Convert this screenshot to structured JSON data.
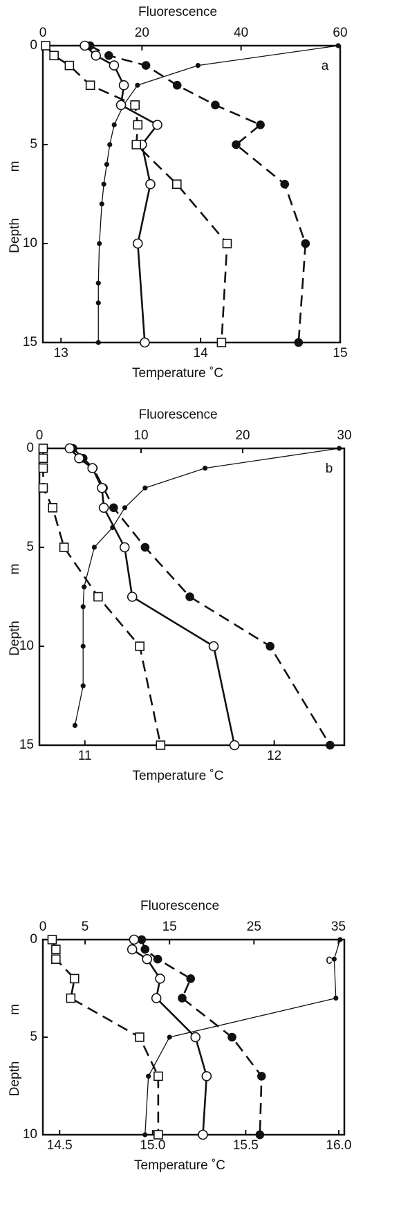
{
  "chart_data": [
    {
      "type": "line",
      "panel": "a",
      "x_label": "Temperature ˚C",
      "x2_label": "Fluorescence",
      "y_label": "Depth",
      "y_unit": "m",
      "xlim": [
        12.87,
        15.0
      ],
      "xticks": [
        13,
        14,
        15
      ],
      "x2lim": [
        0,
        60
      ],
      "x2ticks": [
        0,
        20,
        40,
        60
      ],
      "ylim": [
        0,
        15
      ],
      "yticks": [
        0,
        5,
        10,
        15
      ],
      "y_inverted": true,
      "series": [
        {
          "axis": "x2",
          "marker": "dot",
          "dash": false,
          "color": "#111",
          "y": [
            0,
            1,
            2,
            3,
            4,
            5,
            6,
            7,
            8,
            10,
            12,
            13,
            15
          ],
          "x": [
            59.6,
            31.3,
            19.1,
            16.3,
            14.4,
            13.5,
            12.9,
            12.3,
            11.9,
            11.4,
            11.2,
            11.2,
            11.2
          ]
        },
        {
          "axis": "x2",
          "marker": "filled-circle",
          "dash": true,
          "color": "#111",
          "y": [
            0,
            0.5,
            1,
            2,
            3,
            4,
            5,
            7,
            10,
            15
          ],
          "x": [
            9.5,
            13.3,
            20.8,
            27.1,
            34.8,
            43.9,
            39.0,
            48.8,
            53.0,
            51.6
          ]
        },
        {
          "axis": "x",
          "marker": "circle",
          "dash": false,
          "color": "#111",
          "y": [
            0,
            0.5,
            1,
            2,
            3,
            4,
            5,
            7,
            10,
            15
          ],
          "x": [
            13.17,
            13.25,
            13.38,
            13.45,
            13.43,
            13.69,
            13.58,
            13.64,
            13.55,
            13.6
          ]
        },
        {
          "axis": "x",
          "marker": "square",
          "dash": true,
          "color": "#111",
          "y": [
            0,
            0.5,
            1,
            2,
            3,
            4,
            5,
            7,
            10,
            15
          ],
          "x": [
            12.89,
            12.95,
            13.06,
            13.21,
            13.53,
            13.55,
            13.54,
            13.83,
            14.19,
            14.15
          ]
        }
      ]
    },
    {
      "type": "line",
      "panel": "b",
      "x_label": "Temperature ˚C",
      "x2_label": "Fluorescence",
      "y_label": "Depth",
      "y_unit": "m",
      "xlim": [
        10.76,
        12.37
      ],
      "xticks": [
        11,
        12
      ],
      "x2lim": [
        0,
        30
      ],
      "x2ticks": [
        0,
        10,
        20,
        30
      ],
      "ylim": [
        0,
        15
      ],
      "yticks": [
        0,
        5,
        10,
        15
      ],
      "y_inverted": true,
      "series": [
        {
          "axis": "x2",
          "marker": "dot",
          "dash": false,
          "color": "#111",
          "y": [
            0,
            1,
            2,
            3,
            4,
            5,
            7,
            8,
            10,
            12,
            14
          ],
          "x": [
            29.5,
            16.3,
            10.4,
            8.4,
            7.2,
            5.4,
            4.4,
            4.3,
            4.3,
            4.3,
            3.5
          ]
        },
        {
          "axis": "x2",
          "marker": "filled-circle",
          "dash": true,
          "color": "#111",
          "y": [
            0,
            0.5,
            1,
            2,
            3,
            5,
            7.5,
            10,
            15
          ],
          "x": [
            3.3,
            4.3,
            5.3,
            6.3,
            7.3,
            10.4,
            14.8,
            22.7,
            28.6
          ]
        },
        {
          "axis": "x",
          "marker": "circle",
          "dash": false,
          "color": "#111",
          "y": [
            0,
            0.5,
            1,
            2,
            3,
            5,
            7.5,
            10,
            15
          ],
          "x": [
            10.92,
            10.97,
            11.04,
            11.09,
            11.1,
            11.21,
            11.25,
            11.68,
            11.79
          ]
        },
        {
          "axis": "x",
          "marker": "square",
          "dash": true,
          "color": "#111",
          "y": [
            0,
            0.5,
            1,
            2,
            3,
            5,
            7.5,
            10,
            15
          ],
          "x": [
            10.78,
            10.78,
            10.78,
            10.78,
            10.83,
            10.89,
            11.07,
            11.29,
            11.4
          ]
        }
      ]
    },
    {
      "type": "line",
      "panel": "c",
      "x_label": "Temperature ˚C",
      "x2_label": "Fluorescence",
      "y_label": "Depth",
      "y_unit": "m",
      "xlim": [
        14.41,
        16.03
      ],
      "xticks": [
        14.5,
        {
          "value": 15,
          "label": "15.0"
        },
        15.5,
        {
          "value": 16,
          "label": "16.0"
        }
      ],
      "x2lim": [
        0,
        35.7
      ],
      "x2ticks": [
        0,
        5,
        15,
        25,
        35
      ],
      "ylim": [
        0,
        10
      ],
      "yticks": [
        0,
        5,
        10
      ],
      "y_inverted": true,
      "series": [
        {
          "axis": "x2",
          "marker": "dot",
          "dash": false,
          "color": "#111",
          "y": [
            0,
            1,
            3,
            5,
            7,
            10
          ],
          "x": [
            35.2,
            34.5,
            34.7,
            15.0,
            12.5,
            12.1
          ]
        },
        {
          "axis": "x2",
          "marker": "filled-circle",
          "dash": true,
          "color": "#111",
          "y": [
            0,
            0.5,
            1,
            2,
            3,
            5,
            7,
            10
          ],
          "x": [
            11.7,
            12.1,
            13.6,
            17.5,
            16.5,
            22.4,
            25.9,
            25.7
          ]
        },
        {
          "axis": "x",
          "marker": "circle",
          "dash": false,
          "color": "#111",
          "y": [
            0,
            0.5,
            1,
            2,
            3,
            5,
            7,
            10
          ],
          "x": [
            14.9,
            14.89,
            14.97,
            15.04,
            15.02,
            15.23,
            15.29,
            15.27
          ]
        },
        {
          "axis": "x",
          "marker": "square",
          "dash": true,
          "color": "#111",
          "y": [
            0,
            0.5,
            1,
            2,
            3,
            5,
            7,
            10
          ],
          "x": [
            14.46,
            14.48,
            14.48,
            14.58,
            14.56,
            14.93,
            15.03,
            15.03
          ]
        }
      ]
    }
  ]
}
